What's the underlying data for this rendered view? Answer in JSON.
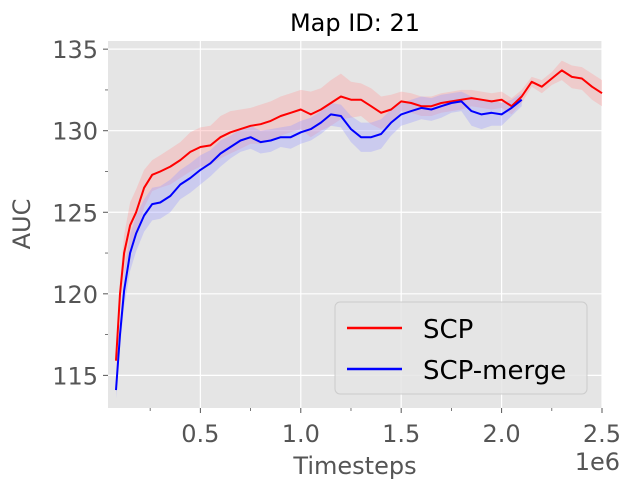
{
  "chart_data": {
    "type": "line",
    "title": "Map ID: 21",
    "xlabel": "Timesteps",
    "ylabel": "AUC",
    "x_offset_label": "1e6",
    "xlim": [
      0.04,
      2.5
    ],
    "ylim": [
      113,
      135.5
    ],
    "x_ticks": [
      0.5,
      1.0,
      1.5,
      2.0,
      2.5
    ],
    "x_tick_labels": [
      "0.5",
      "1.0",
      "1.5",
      "2.0",
      "2.5"
    ],
    "y_ticks": [
      115,
      120,
      125,
      130,
      135
    ],
    "y_tick_labels": [
      "115",
      "120",
      "125",
      "130",
      "135"
    ],
    "grid": true,
    "legend_position": "lower right",
    "series": [
      {
        "name": "SCP",
        "color": "#ff0000",
        "band_color": "#ff9a9a",
        "x": [
          0.08,
          0.1,
          0.12,
          0.15,
          0.18,
          0.22,
          0.26,
          0.3,
          0.35,
          0.4,
          0.45,
          0.5,
          0.55,
          0.6,
          0.65,
          0.7,
          0.75,
          0.8,
          0.85,
          0.9,
          0.95,
          1.0,
          1.05,
          1.1,
          1.15,
          1.2,
          1.25,
          1.3,
          1.35,
          1.4,
          1.45,
          1.5,
          1.55,
          1.6,
          1.65,
          1.7,
          1.75,
          1.8,
          1.85,
          1.9,
          1.95,
          2.0,
          2.05,
          2.1,
          2.15,
          2.2,
          2.25,
          2.3,
          2.35,
          2.4,
          2.45,
          2.5
        ],
        "y": [
          115.9,
          120.0,
          122.5,
          124.2,
          125.0,
          126.5,
          127.3,
          127.5,
          127.8,
          128.2,
          128.7,
          129.0,
          129.1,
          129.6,
          129.9,
          130.1,
          130.3,
          130.4,
          130.6,
          130.9,
          131.1,
          131.3,
          131.0,
          131.3,
          131.7,
          132.1,
          131.9,
          131.9,
          131.5,
          131.1,
          131.3,
          131.8,
          131.7,
          131.5,
          131.5,
          131.7,
          131.8,
          131.9,
          132.0,
          131.9,
          131.8,
          131.9,
          131.5,
          132.1,
          133.0,
          132.7,
          133.2,
          133.7,
          133.3,
          133.2,
          132.7,
          132.3
        ],
        "upper": [
          116.4,
          120.8,
          123.6,
          125.6,
          126.4,
          127.6,
          128.2,
          128.5,
          128.9,
          129.3,
          129.9,
          130.2,
          130.3,
          130.9,
          131.2,
          131.3,
          131.4,
          131.6,
          131.8,
          132.1,
          132.3,
          132.5,
          132.4,
          132.6,
          133.1,
          133.5,
          133.0,
          132.9,
          132.6,
          132.1,
          132.2,
          132.4,
          132.3,
          132.1,
          132.1,
          132.3,
          132.4,
          132.5,
          132.5,
          132.4,
          132.3,
          132.4,
          132.0,
          132.5,
          133.3,
          133.1,
          133.6,
          134.3,
          134.0,
          133.9,
          133.5,
          133.1
        ],
        "lower": [
          115.3,
          119.1,
          121.2,
          122.8,
          123.5,
          125.3,
          126.3,
          126.5,
          126.7,
          127.1,
          127.5,
          127.8,
          127.9,
          128.3,
          128.6,
          128.9,
          129.2,
          129.2,
          129.4,
          129.7,
          129.9,
          130.1,
          129.6,
          130.0,
          130.3,
          130.7,
          130.8,
          130.9,
          130.4,
          130.1,
          130.4,
          131.2,
          131.1,
          130.9,
          130.9,
          131.1,
          131.2,
          131.3,
          131.5,
          131.4,
          131.3,
          131.4,
          131.0,
          131.7,
          132.7,
          132.3,
          132.8,
          133.1,
          132.6,
          132.5,
          131.9,
          131.5
        ]
      },
      {
        "name": "SCP-merge",
        "color": "#0000ff",
        "band_color": "#9a9aff",
        "x": [
          0.08,
          0.1,
          0.12,
          0.15,
          0.18,
          0.22,
          0.26,
          0.3,
          0.35,
          0.4,
          0.45,
          0.5,
          0.55,
          0.6,
          0.65,
          0.7,
          0.75,
          0.8,
          0.85,
          0.9,
          0.95,
          1.0,
          1.05,
          1.1,
          1.15,
          1.2,
          1.25,
          1.3,
          1.35,
          1.4,
          1.45,
          1.5,
          1.55,
          1.6,
          1.65,
          1.7,
          1.75,
          1.8,
          1.85,
          1.9,
          1.95,
          2.0,
          2.05,
          2.1
        ],
        "y": [
          114.1,
          117.5,
          120.2,
          122.5,
          123.7,
          124.8,
          125.5,
          125.6,
          126.0,
          126.7,
          127.1,
          127.6,
          128.0,
          128.6,
          129.0,
          129.4,
          129.6,
          129.3,
          129.4,
          129.6,
          129.6,
          129.9,
          130.1,
          130.5,
          131.0,
          130.9,
          130.1,
          129.6,
          129.6,
          129.8,
          130.5,
          131.0,
          131.2,
          131.4,
          131.3,
          131.5,
          131.7,
          131.8,
          131.2,
          131.0,
          131.1,
          131.0,
          131.4,
          131.9
        ],
        "upper": [
          114.6,
          118.3,
          121.2,
          123.6,
          124.8,
          125.8,
          126.5,
          126.6,
          127.0,
          127.6,
          128.0,
          128.5,
          128.8,
          129.4,
          129.7,
          130.1,
          130.3,
          130.0,
          130.1,
          130.2,
          130.3,
          130.6,
          130.8,
          131.2,
          131.7,
          131.6,
          130.9,
          130.5,
          130.5,
          130.7,
          131.3,
          131.7,
          131.9,
          132.1,
          132.0,
          132.2,
          132.3,
          132.4,
          132.1,
          131.9,
          131.9,
          131.7,
          131.9,
          132.3
        ],
        "lower": [
          113.6,
          116.7,
          119.2,
          121.4,
          122.6,
          123.8,
          124.5,
          124.6,
          125.0,
          125.8,
          126.2,
          126.7,
          127.2,
          127.8,
          128.3,
          128.7,
          128.9,
          128.6,
          128.7,
          129.0,
          128.9,
          129.2,
          129.4,
          129.8,
          130.3,
          130.2,
          129.3,
          128.7,
          128.7,
          128.9,
          129.7,
          130.3,
          130.5,
          130.7,
          130.6,
          130.8,
          131.1,
          131.2,
          130.3,
          130.1,
          130.3,
          130.3,
          130.9,
          131.5
        ]
      }
    ]
  }
}
